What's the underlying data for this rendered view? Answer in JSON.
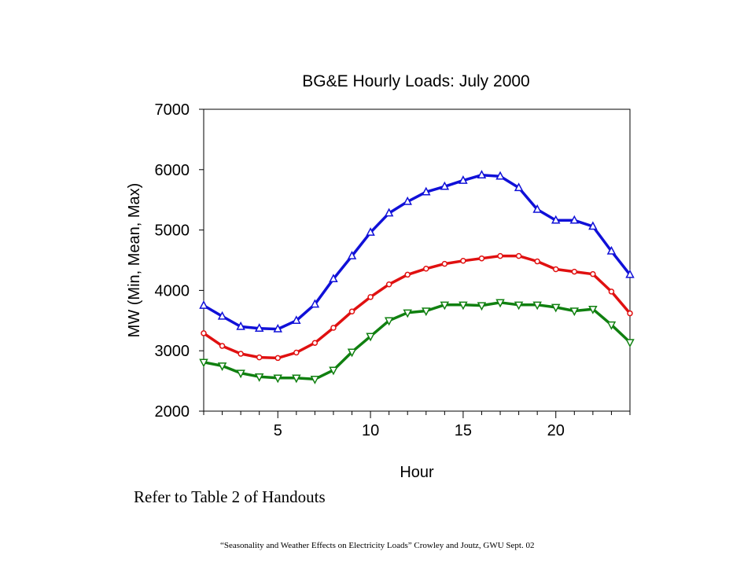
{
  "chart_data": {
    "type": "line",
    "title": "BG&E Hourly Loads: July 2000",
    "xlabel": "Hour",
    "ylabel": "MW (Min, Mean, Max)",
    "x": [
      1,
      2,
      3,
      4,
      5,
      6,
      7,
      8,
      9,
      10,
      11,
      12,
      13,
      14,
      15,
      16,
      17,
      18,
      19,
      20,
      21,
      22,
      23,
      24
    ],
    "xlim": [
      1,
      24
    ],
    "ylim": [
      2000,
      7000
    ],
    "xticks": [
      5,
      10,
      15,
      20
    ],
    "yticks": [
      2000,
      3000,
      4000,
      5000,
      6000,
      7000
    ],
    "grid": false,
    "legend": "none",
    "series": [
      {
        "color": "#1010d8",
        "marker": "triangle-up",
        "values": [
          3750,
          3570,
          3400,
          3370,
          3360,
          3500,
          3770,
          4190,
          4570,
          4960,
          5280,
          5470,
          5630,
          5720,
          5820,
          5910,
          5890,
          5700,
          5340,
          5160,
          5160,
          5060,
          4650,
          4260
        ]
      },
      {
        "color": "#e01010",
        "marker": "circle",
        "values": [
          3290,
          3080,
          2950,
          2890,
          2880,
          2970,
          3130,
          3380,
          3650,
          3890,
          4100,
          4260,
          4360,
          4440,
          4490,
          4530,
          4570,
          4570,
          4480,
          4350,
          4310,
          4270,
          3980,
          3620
        ]
      },
      {
        "color": "#108010",
        "marker": "triangle-down",
        "values": [
          2810,
          2750,
          2630,
          2570,
          2550,
          2550,
          2530,
          2680,
          2980,
          3240,
          3500,
          3630,
          3660,
          3760,
          3760,
          3750,
          3800,
          3760,
          3760,
          3720,
          3660,
          3690,
          3430,
          3140
        ]
      }
    ]
  },
  "note": "Refer to Table 2 of Handouts",
  "footer": "“Seasonality and Weather Effects on Electricity  Loads” Crowley  and Joutz, GWU Sept. 02"
}
